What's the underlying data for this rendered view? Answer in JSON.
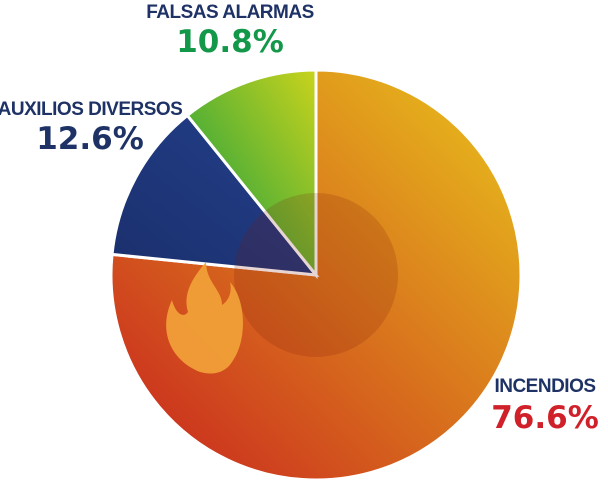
{
  "chart_data": {
    "type": "pie",
    "categories": [
      "INCENDIOS",
      "AUXILIOS DIVERSOS",
      "FALSAS ALARMAS"
    ],
    "values": [
      76.6,
      12.6,
      10.8
    ],
    "value_labels": [
      "76.6%",
      "12.6%",
      "10.8%"
    ],
    "colors": [
      [
        "#c8201e",
        "#e9c51c"
      ],
      [
        "#1a2f6c",
        "#24408c"
      ],
      [
        "#0c9a45",
        "#c9d31c"
      ]
    ],
    "label_color": "#1e3266",
    "value_colors": [
      "#d0202a",
      "#1e3266",
      "#13984a"
    ]
  }
}
